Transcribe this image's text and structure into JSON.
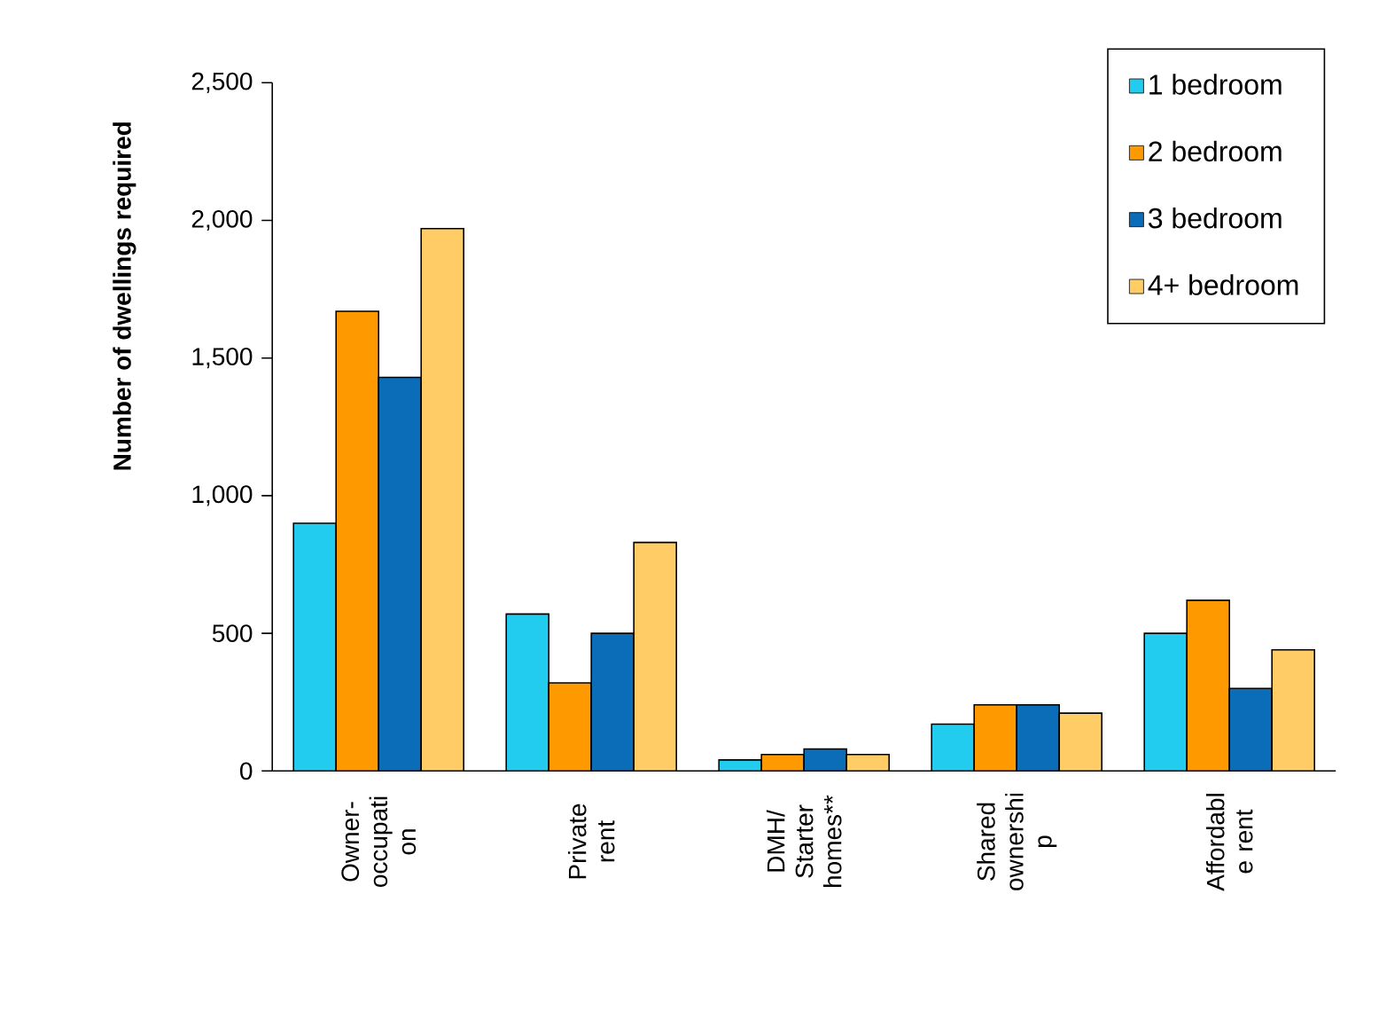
{
  "chart_data": {
    "type": "bar",
    "ylabel": "Number of dwellings required",
    "categories": [
      "Owner- occupati on",
      "Private rent",
      "DMH/ Starter homes**",
      "Shared ownershi p",
      "Affordabl e rent"
    ],
    "series": [
      {
        "name": "1 bedroom",
        "color": "#22ccee",
        "values": [
          900,
          570,
          40,
          170,
          500
        ]
      },
      {
        "name": "2 bedroom",
        "color": "#ff9900",
        "values": [
          1670,
          320,
          60,
          240,
          620
        ]
      },
      {
        "name": "3 bedroom",
        "color": "#0b6cb8",
        "values": [
          1430,
          500,
          80,
          240,
          300
        ]
      },
      {
        "name": "4+ bedroom",
        "color": "#ffcc66",
        "values": [
          1970,
          830,
          60,
          210,
          440
        ]
      }
    ],
    "ylim": [
      0,
      2500
    ],
    "yticks": [
      0,
      500,
      {
        "value": 1000,
        "label": "1,000"
      },
      {
        "value": 1500,
        "label": "1,500"
      },
      {
        "value": 2000,
        "label": "2,000"
      },
      {
        "value": 2500,
        "label": "2,500"
      }
    ],
    "grid": false,
    "legend": "top right"
  }
}
